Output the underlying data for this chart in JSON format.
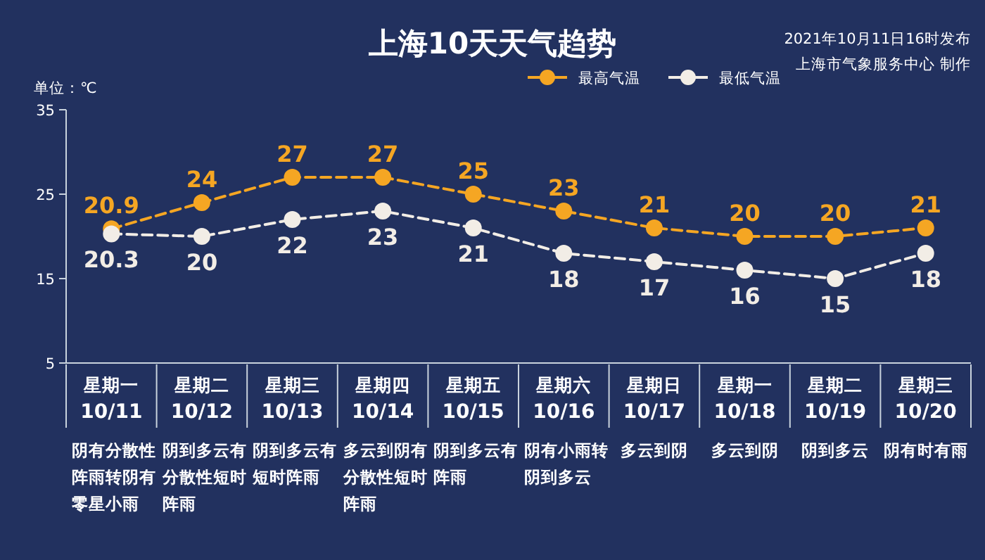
{
  "chart_data": {
    "type": "line",
    "title": "上海10天天气趋势",
    "ylabel": "单位：℃",
    "categories": [
      "星期一 10/11",
      "星期二 10/12",
      "星期三 10/13",
      "星期四 10/14",
      "星期五 10/15",
      "星期六 10/16",
      "星期日 10/17",
      "星期一 10/18",
      "星期二 10/19",
      "星期三 10/20"
    ],
    "series": [
      {
        "name": "最高气温",
        "color": "#f5a623",
        "values": [
          20.9,
          24,
          27,
          27,
          25,
          23,
          21,
          20,
          20,
          21
        ]
      },
      {
        "name": "最低气温",
        "color": "#f2ede6",
        "values": [
          20.3,
          20,
          22,
          23,
          21,
          18,
          17,
          16,
          15,
          18
        ]
      }
    ],
    "ylim": [
      5,
      35
    ],
    "yticks": [
      5,
      15,
      25,
      35
    ],
    "grid": false,
    "legend": "top right",
    "marker": "circle",
    "line_style": "dashed",
    "data_labels": true,
    "annotations": [
      "2021年10月11日16时发布",
      "上海市气象服务中心 制作",
      "阴有分散性阵雨转阴有零星小雨",
      "阴到多云有分散性短时阵雨",
      "阴到多云有短时阵雨",
      "多云到阴有分散性短时阵雨",
      "阴到多云有阵雨",
      "阴有小雨转阴到多云",
      "多云到阴",
      "多云到阴",
      "阴到多云",
      "阴有时有雨"
    ]
  }
}
